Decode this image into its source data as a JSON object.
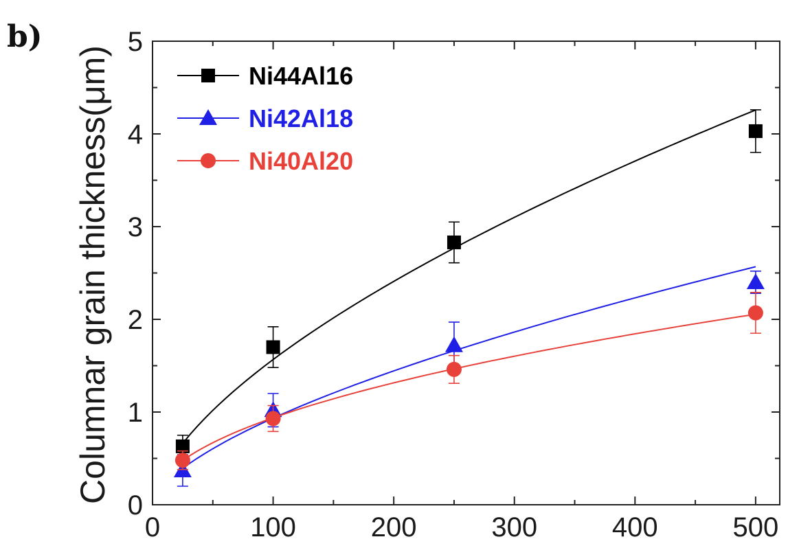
{
  "panel_label": "b)",
  "chart_data": {
    "type": "line",
    "title": "",
    "xlabel": "",
    "ylabel": "Columnar grain thickness(μm)",
    "xlim": [
      0,
      520
    ],
    "ylim": [
      0,
      5
    ],
    "x_ticks": [
      "0",
      "100",
      "200",
      "300",
      "400",
      "500"
    ],
    "y_ticks": [
      "0",
      "1",
      "2",
      "3",
      "4",
      "5"
    ],
    "legend_position": "top-left",
    "grid": false,
    "series": [
      {
        "name": "Ni44Al16",
        "color": "#000000",
        "marker": "square",
        "x": [
          25,
          100,
          250,
          500
        ],
        "y": [
          0.63,
          1.7,
          2.83,
          4.03
        ],
        "err": [
          0.12,
          0.22,
          0.22,
          0.23
        ]
      },
      {
        "name": "Ni42Al18",
        "color": "#1f1fe6",
        "marker": "triangle",
        "x": [
          25,
          100,
          250,
          500
        ],
        "y": [
          0.37,
          1.02,
          1.72,
          2.4
        ],
        "err": [
          0.17,
          0.18,
          0.25,
          0.12
        ]
      },
      {
        "name": "Ni40Al20",
        "color": "#e8413a",
        "marker": "circle",
        "x": [
          25,
          100,
          250,
          500
        ],
        "y": [
          0.48,
          0.93,
          1.46,
          2.07
        ],
        "err": [
          0.1,
          0.14,
          0.15,
          0.22
        ]
      }
    ]
  }
}
